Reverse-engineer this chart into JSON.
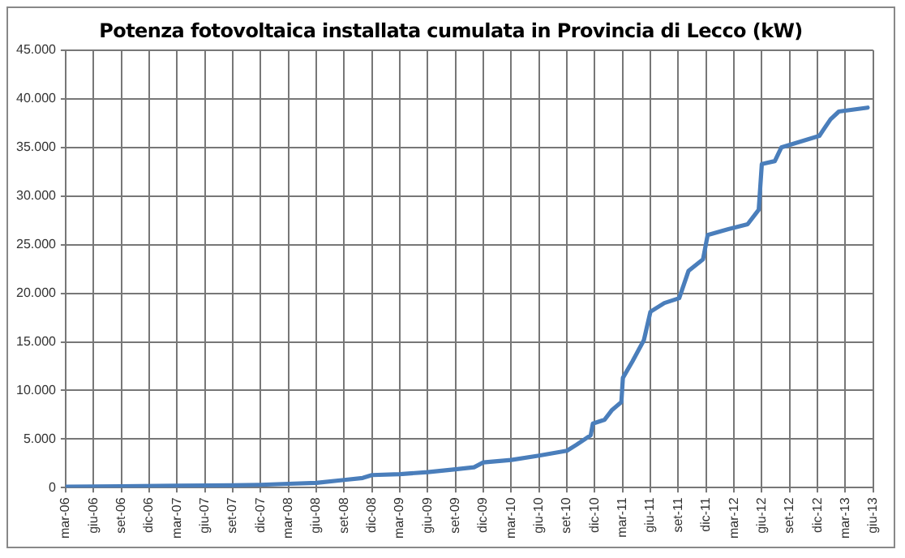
{
  "chart_data": {
    "type": "line",
    "title": "Potenza fotovoltaica installata cumulata in Provincia di Lecco (kW)",
    "x": [
      "2006-03",
      "2006-09",
      "2007-03",
      "2007-09",
      "2007-12",
      "2008-03",
      "2008-06",
      "2008-09",
      "2008-11",
      "2008-12",
      "2009-03",
      "2009-06",
      "2009-09",
      "2009-11",
      "2009-12",
      "2010-03",
      "2010-06",
      "2010-09",
      "2010-10",
      "2010-11-18",
      "2010-11-25",
      "2011-01-03",
      "2011-01-27",
      "2011-02-27",
      "2011-03-02",
      "2011-04-03",
      "2011-05-10",
      "2011-06-01",
      "2011-07-16",
      "2011-09-04",
      "2011-10-04",
      "2011-11-21",
      "2011-12-06",
      "2012-02-13",
      "2012-04-15",
      "2012-05-21",
      "2012-06-01",
      "2012-07-13",
      "2012-08-04",
      "2012-12-07",
      "2013-01-13",
      "2013-02-10",
      "2013-05-13"
    ],
    "series": [
      {
        "color": "#4a7ebb",
        "values": [
          100,
          150,
          200,
          250,
          300,
          400,
          500,
          800,
          1000,
          1300,
          1400,
          1600,
          1900,
          2100,
          2600,
          2850,
          3300,
          3800,
          4400,
          5400,
          6600,
          7000,
          8000,
          8800,
          11300,
          13000,
          15200,
          18100,
          19000,
          19500,
          22300,
          23500,
          26000,
          26600,
          27100,
          28600,
          33300,
          33600,
          35000,
          36200,
          37900,
          38700,
          39100
        ]
      }
    ],
    "xlim": [
      "2006-03",
      "2013-06"
    ],
    "xticks": [
      {
        "value": "2006-03",
        "label": "mar-06"
      },
      {
        "value": "2006-06",
        "label": "giu-06"
      },
      {
        "value": "2006-09",
        "label": "set-06"
      },
      {
        "value": "2006-12",
        "label": "dic-06"
      },
      {
        "value": "2007-03",
        "label": "mar-07"
      },
      {
        "value": "2007-06",
        "label": "giu-07"
      },
      {
        "value": "2007-09",
        "label": "set-07"
      },
      {
        "value": "2007-12",
        "label": "dic-07"
      },
      {
        "value": "2008-03",
        "label": "mar-08"
      },
      {
        "value": "2008-06",
        "label": "giu-08"
      },
      {
        "value": "2008-09",
        "label": "set-08"
      },
      {
        "value": "2008-12",
        "label": "dic-08"
      },
      {
        "value": "2009-03",
        "label": "mar-09"
      },
      {
        "value": "2009-06",
        "label": "giu-09"
      },
      {
        "value": "2009-09",
        "label": "set-09"
      },
      {
        "value": "2009-12",
        "label": "dic-09"
      },
      {
        "value": "2010-03",
        "label": "mar-10"
      },
      {
        "value": "2010-06",
        "label": "giu-10"
      },
      {
        "value": "2010-09",
        "label": "set-10"
      },
      {
        "value": "2010-12",
        "label": "dic-10"
      },
      {
        "value": "2011-03",
        "label": "mar-11"
      },
      {
        "value": "2011-06",
        "label": "giu-11"
      },
      {
        "value": "2011-09",
        "label": "set-11"
      },
      {
        "value": "2011-12",
        "label": "dic-11"
      },
      {
        "value": "2012-03",
        "label": "mar-12"
      },
      {
        "value": "2012-06",
        "label": "giu-12"
      },
      {
        "value": "2012-09",
        "label": "set-12"
      },
      {
        "value": "2012-12",
        "label": "dic-12"
      },
      {
        "value": "2013-03",
        "label": "mar-13"
      },
      {
        "value": "2013-06",
        "label": "giu-13"
      }
    ],
    "ylim": [
      0,
      45000
    ],
    "yticks": [
      0,
      {
        "value": 5000,
        "label": "5.000"
      },
      {
        "value": 10000,
        "label": "10.000"
      },
      {
        "value": 15000,
        "label": "15.000"
      },
      {
        "value": 20000,
        "label": "20.000"
      },
      {
        "value": 25000,
        "label": "25.000"
      },
      {
        "value": 30000,
        "label": "30.000"
      },
      {
        "value": 35000,
        "label": "35.000"
      },
      {
        "value": 40000,
        "label": "40.000"
      },
      {
        "value": 45000,
        "label": "45.000"
      }
    ],
    "grid": true,
    "legend": false,
    "marker": "none",
    "line_style": "solid"
  }
}
